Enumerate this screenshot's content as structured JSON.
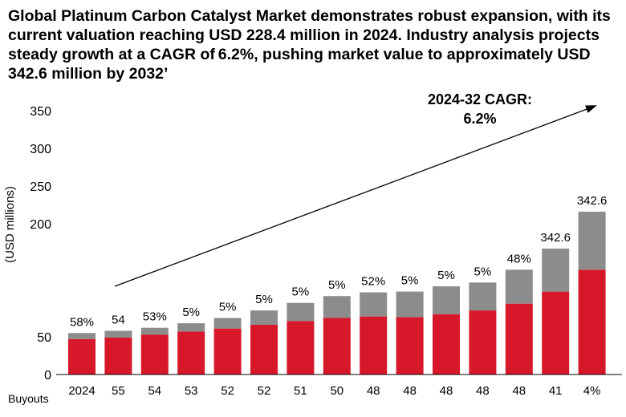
{
  "title": "Global Platinum Carbon Catalyst Market demonstrates robust expansion, with its current valuation reaching USD 228.4 million in 2024. Industry analysis projects steady growth at a CAGR of 6.2%, pushing market value to approximately USD 342.6 million by 2032’",
  "chart_data": {
    "type": "bar",
    "stacked": true,
    "title": "",
    "xlabel": "Buyouts",
    "ylabel": "(USD millions)",
    "ylim": [
      0,
      350
    ],
    "yticks": [
      0,
      50,
      200,
      250,
      300,
      350
    ],
    "categories": [
      "2024",
      "55",
      "54",
      "53",
      "52",
      "52",
      "51",
      "50",
      "48",
      "48",
      "48",
      "48",
      "48",
      "41",
      "4%"
    ],
    "bar_labels": [
      "58%",
      "54",
      "53%",
      "5%",
      "5%",
      "5%",
      "5%",
      "5%",
      "52%",
      "5%",
      "5%",
      "5%",
      "48%",
      "342.6",
      "342.6"
    ],
    "series": [
      {
        "values": [
          47,
          49,
          53,
          57,
          61,
          66,
          71,
          75,
          77,
          76,
          80,
          85,
          94,
          110,
          139
        ]
      },
      {
        "values": [
          8,
          9,
          9,
          11,
          14,
          19,
          24,
          29,
          32,
          34,
          37,
          37,
          45,
          57,
          77
        ]
      }
    ],
    "colors": {
      "bottom": "#d7182a",
      "top": "#8c8c8c",
      "axis": "#000000"
    },
    "annotation": {
      "line1": "2024-32 CAGR:",
      "line2": "6.2%"
    },
    "grid": false,
    "legend": "none"
  }
}
